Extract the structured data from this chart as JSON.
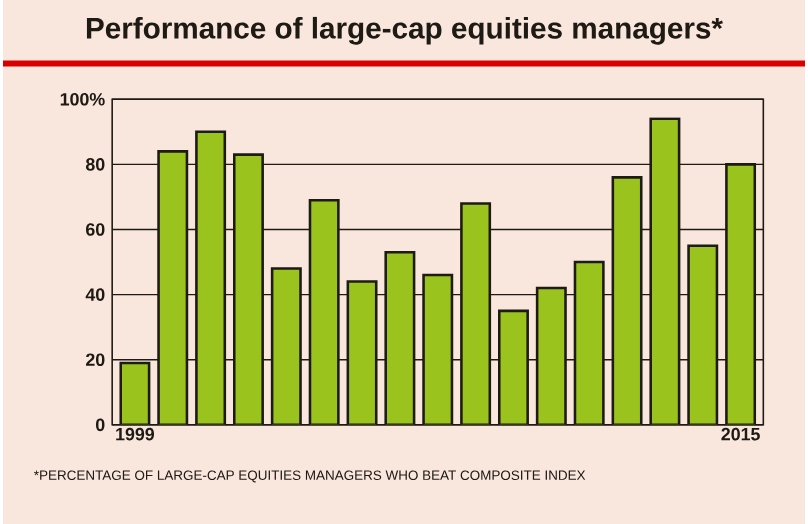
{
  "chart_data": {
    "type": "bar",
    "title": "Performance of large-cap equities managers*",
    "categories": [
      "1999",
      null,
      null,
      null,
      null,
      null,
      null,
      null,
      null,
      null,
      null,
      null,
      null,
      null,
      null,
      null,
      "2015"
    ],
    "values": [
      19,
      84,
      90,
      83,
      48,
      69,
      44,
      53,
      46,
      68,
      35,
      42,
      50,
      76,
      94,
      55,
      80
    ],
    "color": "#9bc31e",
    "ylim": [
      0,
      100
    ],
    "yticks": [
      0,
      20,
      40,
      60,
      80,
      {
        "value": 100,
        "label": "100%"
      }
    ],
    "grid": "y",
    "annotations": [
      "*PERCENTAGE OF LARGE-CAP EQUITIES MANAGERS WHO BEAT COMPOSITE INDEX"
    ]
  }
}
